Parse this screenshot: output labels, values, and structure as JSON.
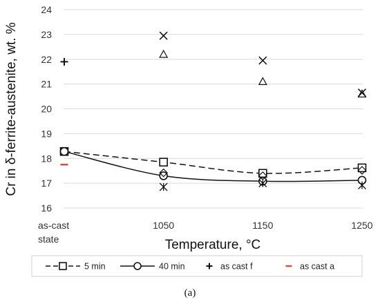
{
  "chart_data": {
    "type": "line",
    "categories": [
      "as-cast state",
      "1050",
      "1150",
      "1250"
    ],
    "category_lines": [
      [
        "as-cast"
      ],
      [
        "1050"
      ],
      [
        "1150"
      ],
      [
        "1250"
      ]
    ],
    "category_sublines": [
      [
        "state"
      ],
      [],
      [],
      []
    ],
    "xlabel": "Temperature, °C",
    "ylabel": "Cr in δ-ferrite-austenite, wt. %",
    "ylim": [
      16,
      24
    ],
    "yticks": [
      16,
      17,
      18,
      19,
      20,
      21,
      22,
      23,
      24
    ],
    "grid": "horizontal",
    "legend_position": "bottom",
    "caption": "(a)",
    "series": [
      {
        "name": "5 min",
        "line": "dashed",
        "marker": "square",
        "curve": "smooth",
        "points": [
          [
            0,
            18.28
          ],
          [
            1,
            17.85
          ],
          [
            2,
            17.4
          ],
          [
            3,
            17.62
          ]
        ]
      },
      {
        "name": "40 min",
        "line": "solid",
        "marker": "circle",
        "curve": "smooth",
        "points": [
          [
            0,
            18.28
          ],
          [
            1,
            17.3
          ],
          [
            2,
            17.08
          ],
          [
            3,
            17.12
          ]
        ]
      },
      {
        "name": "as cast f",
        "line": "none",
        "marker": "plus",
        "points": [
          [
            0,
            21.9
          ]
        ]
      },
      {
        "name": "as cast a",
        "line": "none",
        "marker": "dash",
        "points": [
          [
            0,
            17.75
          ]
        ]
      },
      {
        "name": "",
        "line": "none",
        "marker": "x",
        "points": [
          [
            1,
            22.95
          ],
          [
            2,
            21.95
          ],
          [
            3,
            20.65
          ]
        ]
      },
      {
        "name": "",
        "line": "none",
        "marker": "triangle",
        "points": [
          [
            1,
            22.2
          ],
          [
            2,
            21.1
          ],
          [
            3,
            20.6
          ]
        ]
      },
      {
        "name": "",
        "line": "none",
        "marker": "asterisk",
        "points": [
          [
            1,
            16.85
          ],
          [
            2,
            17.0
          ],
          [
            3,
            16.92
          ]
        ]
      },
      {
        "name": "",
        "line": "none",
        "marker": "diamond",
        "points": [
          [
            1,
            17.42
          ],
          [
            2,
            17.3
          ],
          [
            3,
            17.52
          ]
        ]
      }
    ]
  }
}
